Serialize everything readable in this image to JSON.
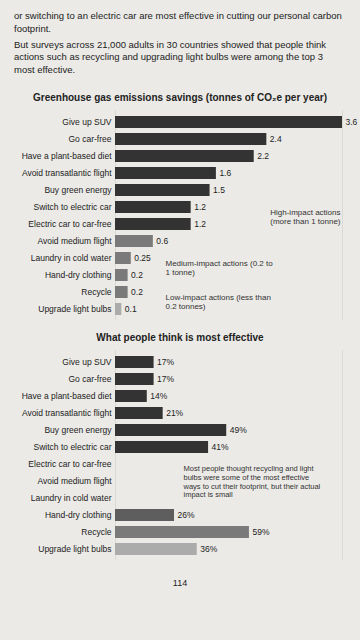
{
  "text": [
    "or switching to an electric car are most effective in cutting our personal carbon footprint.",
    "But surveys across 21,000 adults in 30 countries showed that people think actions such as recycling and upgrading light bulbs were among the top 3 most effective."
  ],
  "chart_data": [
    {
      "type": "bar",
      "orientation": "horizontal",
      "title": "Greenhouse gas emissions savings (tonnes of CO₂e per year)",
      "categories": [
        "Give up SUV",
        "Go car-free",
        "Have a plant-based diet",
        "Avoid transatlantic flight",
        "Buy green energy",
        "Switch to electric car",
        "Electric car to car-free",
        "Avoid medium flight",
        "Laundry in cold water",
        "Hand-dry clothing",
        "Recycle",
        "Upgrade light bulbs"
      ],
      "values": [
        3.6,
        2.4,
        2.2,
        1.6,
        1.5,
        1.2,
        1.2,
        0.6,
        0.25,
        0.2,
        0.2,
        0.1
      ],
      "colors": [
        "#333333",
        "#333333",
        "#333333",
        "#333333",
        "#333333",
        "#333333",
        "#333333",
        "#7a7a7a",
        "#7a7a7a",
        "#7a7a7a",
        "#7a7a7a",
        "#ababab"
      ],
      "xlim": [
        0,
        3.6
      ],
      "data_labels": true,
      "tick_labels": "y",
      "grid": false,
      "annotations": [
        "High-impact actions (more than 1 tonne)",
        "Medium-impact actions (0.2 to 1 tonne)",
        "Low-impact actions (less than 0.2 tonnes)"
      ]
    },
    {
      "type": "bar",
      "orientation": "horizontal",
      "title": "What people think is most effective",
      "categories": [
        "Give up SUV",
        "Go car-free",
        "Have a plant-based diet",
        "Avoid transatlantic flight",
        "Buy green energy",
        "Switch to electric car",
        "Electric car to car-free",
        "Avoid medium flight",
        "Laundry in cold water",
        "Hand-dry clothing",
        "Recycle",
        "Upgrade light bulbs"
      ],
      "values": [
        17,
        17,
        14,
        21,
        49,
        41,
        null,
        null,
        null,
        26,
        59,
        36
      ],
      "value_labels": [
        "17%",
        "17%",
        "14%",
        "21%",
        "49%",
        "41%",
        null,
        null,
        null,
        "26%",
        "59%",
        "36%"
      ],
      "colors": [
        "#333333",
        "#333333",
        "#333333",
        "#333333",
        "#333333",
        "#333333",
        "#333333",
        "#7a7a7a",
        "#7a7a7a",
        "#5e5e5e",
        "#7a7a7a",
        "#ababab"
      ],
      "xlim": [
        0,
        100
      ],
      "data_labels": true,
      "tick_labels": "y",
      "grid": false,
      "annotations": [
        "Most people thought recycling and light bulbs were some of the most effective ways to cut their footprint, but their actual impact is small"
      ]
    }
  ],
  "page_number": "114"
}
